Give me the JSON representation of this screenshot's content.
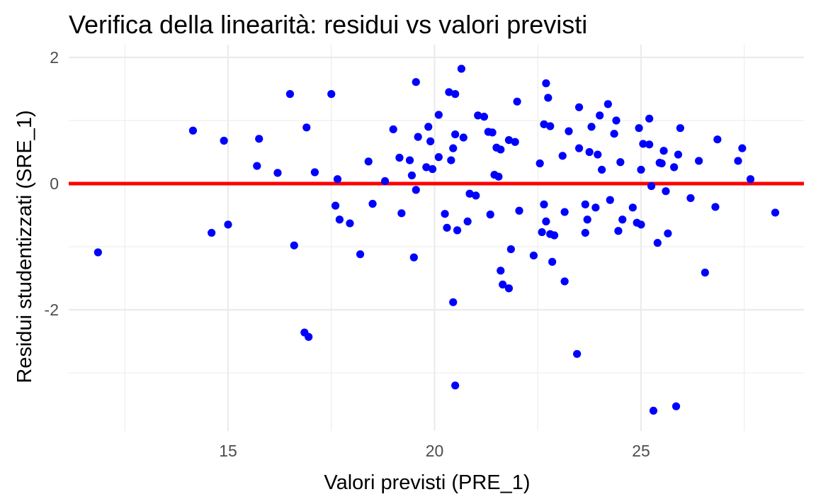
{
  "chart_data": {
    "type": "scatter",
    "title": "Verifica della linearità: residui vs valori previsti",
    "xlabel": "Valori previsti (PRE_1)",
    "ylabel": "Residui studentizzati (SRE_1)",
    "xlim": [
      11.6,
      28.6
    ],
    "ylim": [
      -3.95,
      2.1
    ],
    "x_ticks": [
      15,
      20,
      25
    ],
    "x_tick_labels": [
      "15",
      "20",
      "25"
    ],
    "x_minor_ticks": [
      12.5,
      17.5,
      22.5,
      27.5
    ],
    "y_ticks": [
      -2,
      0,
      2
    ],
    "y_tick_labels": [
      "-2",
      "0",
      "2"
    ],
    "y_minor_ticks": [
      -3,
      -1,
      1
    ],
    "grid": true,
    "point_color": "#0000ff",
    "reference_line": {
      "y": 0,
      "color": "#ff0000"
    },
    "points": [
      {
        "x": 11.85,
        "y": -1.09
      },
      {
        "x": 14.15,
        "y": 0.84
      },
      {
        "x": 14.6,
        "y": -0.78
      },
      {
        "x": 14.9,
        "y": 0.68
      },
      {
        "x": 15.0,
        "y": -0.65
      },
      {
        "x": 15.7,
        "y": 0.28
      },
      {
        "x": 15.75,
        "y": 0.71
      },
      {
        "x": 16.2,
        "y": 0.17
      },
      {
        "x": 16.5,
        "y": 1.42
      },
      {
        "x": 16.6,
        "y": -0.98
      },
      {
        "x": 16.85,
        "y": -2.36
      },
      {
        "x": 16.9,
        "y": 0.89
      },
      {
        "x": 16.95,
        "y": -2.43
      },
      {
        "x": 17.1,
        "y": 0.18
      },
      {
        "x": 17.5,
        "y": 1.42
      },
      {
        "x": 17.6,
        "y": -0.35
      },
      {
        "x": 17.65,
        "y": 0.07
      },
      {
        "x": 17.7,
        "y": -0.57
      },
      {
        "x": 17.95,
        "y": -0.63
      },
      {
        "x": 18.2,
        "y": -1.12
      },
      {
        "x": 18.4,
        "y": 0.35
      },
      {
        "x": 18.5,
        "y": -0.32
      },
      {
        "x": 18.8,
        "y": 0.04
      },
      {
        "x": 19.0,
        "y": 0.86
      },
      {
        "x": 19.15,
        "y": 0.41
      },
      {
        "x": 19.2,
        "y": -0.47
      },
      {
        "x": 19.4,
        "y": 0.37
      },
      {
        "x": 19.45,
        "y": 0.13
      },
      {
        "x": 19.5,
        "y": -1.17
      },
      {
        "x": 19.55,
        "y": -0.1
      },
      {
        "x": 19.55,
        "y": 1.61
      },
      {
        "x": 19.6,
        "y": 0.74
      },
      {
        "x": 19.8,
        "y": 0.26
      },
      {
        "x": 19.85,
        "y": 0.9
      },
      {
        "x": 19.9,
        "y": 0.67
      },
      {
        "x": 19.95,
        "y": 0.23
      },
      {
        "x": 20.1,
        "y": 1.09
      },
      {
        "x": 20.1,
        "y": 0.42
      },
      {
        "x": 20.25,
        "y": -0.48
      },
      {
        "x": 20.3,
        "y": -0.7
      },
      {
        "x": 20.35,
        "y": 1.45
      },
      {
        "x": 20.4,
        "y": 0.37
      },
      {
        "x": 20.45,
        "y": 0.56
      },
      {
        "x": 20.45,
        "y": -1.88
      },
      {
        "x": 20.5,
        "y": 1.42
      },
      {
        "x": 20.5,
        "y": 0.78
      },
      {
        "x": 20.5,
        "y": -3.2
      },
      {
        "x": 20.55,
        "y": -0.74
      },
      {
        "x": 20.65,
        "y": 1.82
      },
      {
        "x": 20.7,
        "y": 0.73
      },
      {
        "x": 20.8,
        "y": -0.6
      },
      {
        "x": 20.85,
        "y": -0.16
      },
      {
        "x": 21.0,
        "y": -0.19
      },
      {
        "x": 21.05,
        "y": 1.08
      },
      {
        "x": 21.2,
        "y": 1.06
      },
      {
        "x": 21.3,
        "y": 0.82
      },
      {
        "x": 21.35,
        "y": -0.49
      },
      {
        "x": 21.4,
        "y": 0.81
      },
      {
        "x": 21.45,
        "y": 0.14
      },
      {
        "x": 21.5,
        "y": 0.57
      },
      {
        "x": 21.55,
        "y": 0.11
      },
      {
        "x": 21.6,
        "y": -1.38
      },
      {
        "x": 21.6,
        "y": 0.54
      },
      {
        "x": 21.65,
        "y": -1.6
      },
      {
        "x": 21.8,
        "y": -1.66
      },
      {
        "x": 21.8,
        "y": 0.69
      },
      {
        "x": 21.85,
        "y": -1.04
      },
      {
        "x": 21.95,
        "y": 0.66
      },
      {
        "x": 22.0,
        "y": 1.3
      },
      {
        "x": 22.05,
        "y": -0.43
      },
      {
        "x": 22.4,
        "y": -1.14
      },
      {
        "x": 22.55,
        "y": 0.32
      },
      {
        "x": 22.6,
        "y": -0.77
      },
      {
        "x": 22.65,
        "y": -0.33
      },
      {
        "x": 22.65,
        "y": 0.94
      },
      {
        "x": 22.7,
        "y": -0.6
      },
      {
        "x": 22.7,
        "y": 1.59
      },
      {
        "x": 22.75,
        "y": 1.36
      },
      {
        "x": 22.8,
        "y": -0.8
      },
      {
        "x": 22.8,
        "y": 0.91
      },
      {
        "x": 22.85,
        "y": -1.24
      },
      {
        "x": 22.9,
        "y": -0.82
      },
      {
        "x": 23.1,
        "y": 0.44
      },
      {
        "x": 23.15,
        "y": -0.45
      },
      {
        "x": 23.15,
        "y": -1.55
      },
      {
        "x": 23.25,
        "y": 0.83
      },
      {
        "x": 23.45,
        "y": -2.7
      },
      {
        "x": 23.5,
        "y": 0.56
      },
      {
        "x": 23.5,
        "y": 1.21
      },
      {
        "x": 23.65,
        "y": -0.33
      },
      {
        "x": 23.65,
        "y": -0.78
      },
      {
        "x": 23.7,
        "y": -0.57
      },
      {
        "x": 23.75,
        "y": 0.5
      },
      {
        "x": 23.8,
        "y": 0.9
      },
      {
        "x": 23.9,
        "y": -0.38
      },
      {
        "x": 23.95,
        "y": 0.46
      },
      {
        "x": 24.0,
        "y": 1.08
      },
      {
        "x": 24.05,
        "y": 0.22
      },
      {
        "x": 24.2,
        "y": 1.26
      },
      {
        "x": 24.25,
        "y": -0.26
      },
      {
        "x": 24.35,
        "y": 0.79
      },
      {
        "x": 24.4,
        "y": 1.0
      },
      {
        "x": 24.45,
        "y": -0.75
      },
      {
        "x": 24.5,
        "y": 0.34
      },
      {
        "x": 24.55,
        "y": -0.57
      },
      {
        "x": 24.8,
        "y": -0.38
      },
      {
        "x": 24.9,
        "y": -0.62
      },
      {
        "x": 24.95,
        "y": 0.88
      },
      {
        "x": 25.0,
        "y": -0.65
      },
      {
        "x": 25.0,
        "y": 0.22
      },
      {
        "x": 25.05,
        "y": 0.63
      },
      {
        "x": 25.2,
        "y": 0.62
      },
      {
        "x": 25.2,
        "y": 1.03
      },
      {
        "x": 25.25,
        "y": -0.04
      },
      {
        "x": 25.3,
        "y": -3.6
      },
      {
        "x": 25.4,
        "y": -0.94
      },
      {
        "x": 25.45,
        "y": 0.33
      },
      {
        "x": 25.5,
        "y": 0.32
      },
      {
        "x": 25.55,
        "y": 0.52
      },
      {
        "x": 25.6,
        "y": -0.12
      },
      {
        "x": 25.65,
        "y": -0.79
      },
      {
        "x": 25.8,
        "y": 0.26
      },
      {
        "x": 25.85,
        "y": -3.53
      },
      {
        "x": 25.9,
        "y": 0.46
      },
      {
        "x": 25.95,
        "y": 0.88
      },
      {
        "x": 26.2,
        "y": -0.23
      },
      {
        "x": 26.4,
        "y": 0.36
      },
      {
        "x": 26.55,
        "y": -1.41
      },
      {
        "x": 26.8,
        "y": -0.37
      },
      {
        "x": 26.85,
        "y": 0.7
      },
      {
        "x": 27.35,
        "y": 0.36
      },
      {
        "x": 27.45,
        "y": 0.56
      },
      {
        "x": 27.65,
        "y": 0.07
      },
      {
        "x": 28.25,
        "y": -0.46
      }
    ]
  }
}
